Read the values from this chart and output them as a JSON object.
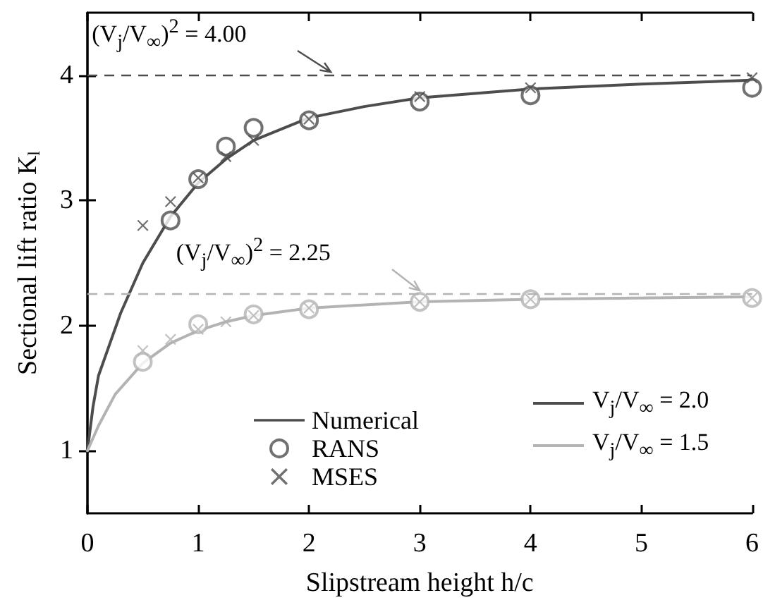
{
  "chart_data": {
    "type": "line",
    "xlabel": "Slipstream height h/c",
    "ylabel": "Sectional lift ratio K$_{l}$",
    "xlim": [
      0,
      6
    ],
    "xticks": [
      0,
      1,
      2,
      3,
      4,
      5,
      6
    ],
    "ylim": [
      0.5,
      4.5
    ],
    "yticks": [
      1,
      2,
      3,
      4
    ],
    "grid": false,
    "legend": "bottom",
    "line_style": "solid",
    "series": [
      {
        "name": "Numerical",
        "marker": "none",
        "color": "#4d4d4d",
        "x": [
          0,
          0.05,
          0.1,
          0.2,
          0.3,
          0.5,
          0.75,
          1,
          1.25,
          1.5,
          2,
          2.5,
          3,
          4,
          5,
          6
        ],
        "values": [
          1,
          1.35,
          1.6,
          1.85,
          2.1,
          2.5,
          2.87,
          3.14,
          3.33,
          3.48,
          3.66,
          3.75,
          3.82,
          3.89,
          3.93,
          3.96
        ]
      },
      {
        "name": "RANS",
        "type": "scatter",
        "marker": "circle",
        "color": "#4d4d4d",
        "x": [
          0.75,
          1,
          1.25,
          1.5,
          2,
          3,
          4,
          6
        ],
        "values": [
          2.84,
          3.17,
          3.43,
          3.58,
          3.64,
          3.79,
          3.84,
          3.9
        ]
      },
      {
        "name": "MSES",
        "type": "scatter",
        "marker": "cross",
        "color": "#4d4d4d",
        "x": [
          0.5,
          0.75,
          1,
          1.25,
          1.5,
          2,
          3,
          4,
          6
        ],
        "values": [
          2.8,
          2.99,
          3.18,
          3.35,
          3.48,
          3.65,
          3.83,
          3.9,
          3.98
        ]
      },
      {
        "marker": "none",
        "color": "#b3b3b3",
        "x": [
          0,
          0.1,
          0.25,
          0.5,
          0.75,
          1,
          1.25,
          1.5,
          2,
          3,
          4,
          6
        ],
        "values": [
          1,
          1.2,
          1.45,
          1.7,
          1.86,
          1.96,
          2.03,
          2.08,
          2.14,
          2.19,
          2.21,
          2.23
        ]
      },
      {
        "type": "scatter",
        "marker": "circle",
        "color": "#b3b3b3",
        "x": [
          0.5,
          1,
          1.5,
          2,
          3,
          4,
          6
        ],
        "values": [
          1.71,
          2.01,
          2.09,
          2.13,
          2.19,
          2.21,
          2.22
        ]
      },
      {
        "type": "scatter",
        "marker": "cross",
        "color": "#b3b3b3",
        "x": [
          0.5,
          0.75,
          1,
          1.25,
          1.5,
          2,
          3,
          4,
          6
        ],
        "values": [
          1.8,
          1.89,
          1.97,
          2.03,
          2.08,
          2.14,
          2.19,
          2.21,
          2.22
        ]
      }
    ],
    "ref_lines": [
      {
        "axis": "y",
        "value": 4,
        "label": "(V$_{j}$/V$_{∞}$)$^{2}$ = 4.00",
        "color": "#4d4d4d",
        "line_style": "dashed"
      },
      {
        "axis": "y",
        "value": 2.25,
        "label": "(V$_{j}$/V$_{∞}$)$^{2}$ = 2.25",
        "color": "#b3b3b3",
        "line_style": "dashed"
      }
    ],
    "annotations": [
      "V$_{j}$/V$_{∞}$ = 2.0",
      "V$_{j}$/V$_{∞}$ = 1.5"
    ]
  }
}
